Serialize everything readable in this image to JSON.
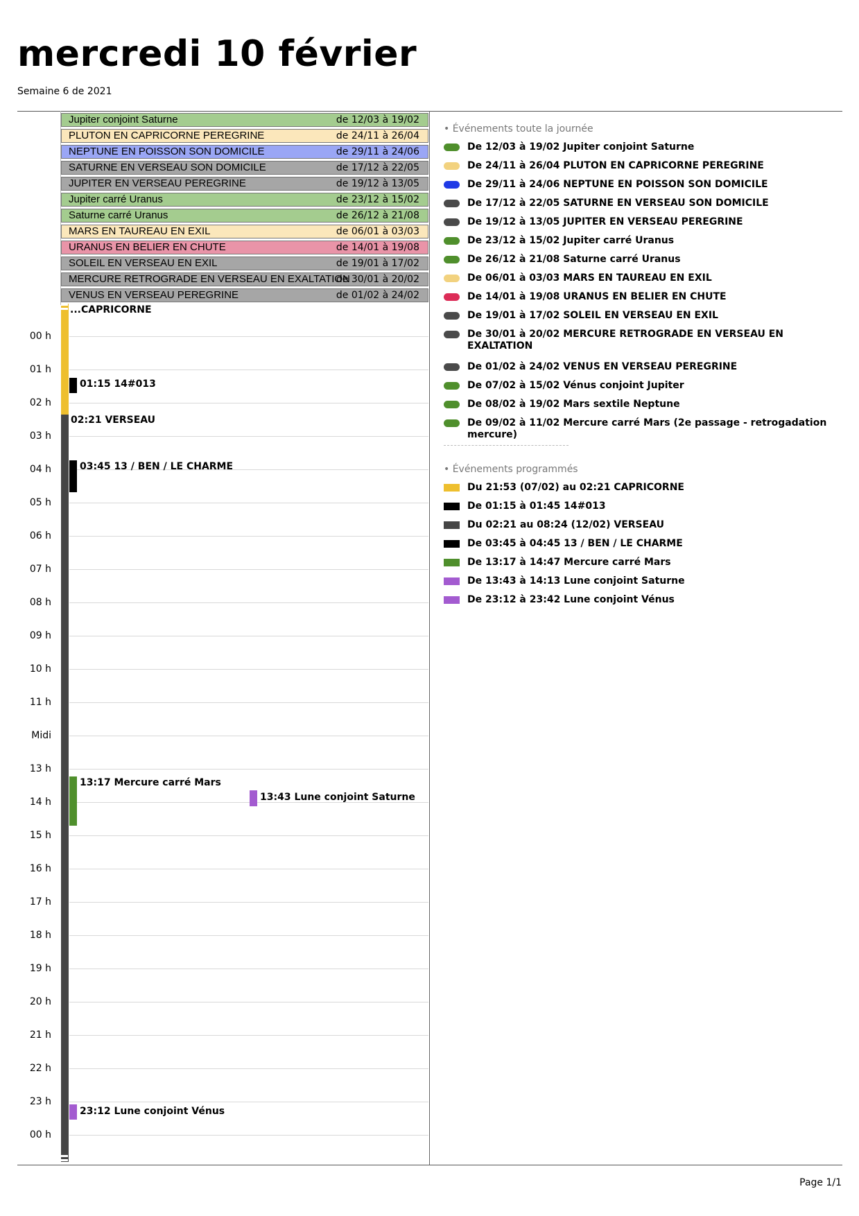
{
  "header": {
    "title": "mercredi 10 février",
    "subtitle": "Semaine 6 de 2021"
  },
  "all_day_bars": [
    {
      "name": "Jupiter conjoint Saturne",
      "dates": "de 12/03 à 19/02",
      "color": "#a4cc8f"
    },
    {
      "name": "PLUTON EN CAPRICORNE PEREGRINE",
      "dates": "de 24/11 à 26/04",
      "color": "#fbe7bb"
    },
    {
      "name": "NEPTUNE EN POISSON SON DOMICILE",
      "dates": "de 29/11 à 24/06",
      "color": "#9aa6f5"
    },
    {
      "name": "SATURNE EN VERSEAU SON DOMICILE",
      "dates": "de 17/12 à 22/05",
      "color": "#a6a6a6"
    },
    {
      "name": "JUPITER EN VERSEAU PEREGRINE",
      "dates": "de 19/12 à 13/05",
      "color": "#a6a6a6"
    },
    {
      "name": "Jupiter carré Uranus",
      "dates": "de 23/12 à 15/02",
      "color": "#a4cc8f"
    },
    {
      "name": "Saturne carré Uranus",
      "dates": "de 26/12 à 21/08",
      "color": "#a4cc8f"
    },
    {
      "name": "MARS EN TAUREAU EN EXIL",
      "dates": "de 06/01 à 03/03",
      "color": "#fbe7bb"
    },
    {
      "name": "URANUS EN BELIER EN CHUTE",
      "dates": "de 14/01 à 19/08",
      "color": "#e994a8"
    },
    {
      "name": "SOLEIL EN VERSEAU EN EXIL",
      "dates": "de 19/01 à 17/02",
      "color": "#a6a6a6"
    },
    {
      "name": "MERCURE RETROGRADE EN VERSEAU EN EXALTATION",
      "dates": "de 30/01 à 20/02",
      "color": "#a6a6a6"
    },
    {
      "name": "VENUS EN VERSEAU PEREGRINE",
      "dates": "de 01/02 à 24/02",
      "color": "#a6a6a6"
    }
  ],
  "hours": [
    "00 h",
    "01 h",
    "02 h",
    "03 h",
    "04 h",
    "05 h",
    "06 h",
    "07 h",
    "08 h",
    "09 h",
    "10 h",
    "11 h",
    "Midi",
    "13 h",
    "14 h",
    "15 h",
    "16 h",
    "17 h",
    "18 h",
    "19 h",
    "20 h",
    "21 h",
    "22 h",
    "23 h",
    "00 h"
  ],
  "timeline_labels": {
    "capricorne": "...CAPRICORNE",
    "ev_14013": "01:15 14#013",
    "verseau": "02:21 VERSEAU",
    "ben": "03:45 13 / BEN / LE CHARME",
    "mercure": "13:17 Mercure carré Mars",
    "lune_saturne": "13:43 Lune conjoint Saturne",
    "lune_venus": "23:12 Lune conjoint Vénus"
  },
  "legend": {
    "all_day_heading": "• Événements toute la journée",
    "all_day_items": [
      {
        "text": "De 12/03 à 19/02 Jupiter conjoint Saturne",
        "color": "#4f8f2c"
      },
      {
        "text": "De 24/11 à 26/04 PLUTON EN CAPRICORNE PEREGRINE",
        "color": "#f2d27f"
      },
      {
        "text": "De 29/11 à 24/06 NEPTUNE EN POISSON SON DOMICILE",
        "color": "#1f3ae6"
      },
      {
        "text": "De 17/12 à 22/05 SATURNE EN VERSEAU SON DOMICILE",
        "color": "#4a4a4a"
      },
      {
        "text": "De 19/12 à 13/05 JUPITER EN VERSEAU PEREGRINE",
        "color": "#4a4a4a"
      },
      {
        "text": "De 23/12 à 15/02 Jupiter carré Uranus",
        "color": "#4f8f2c"
      },
      {
        "text": "De 26/12 à 21/08 Saturne carré Uranus",
        "color": "#4f8f2c"
      },
      {
        "text": "De 06/01 à 03/03 MARS EN TAUREAU EN EXIL",
        "color": "#f2d27f"
      },
      {
        "text": "De 14/01 à 19/08 URANUS EN BELIER EN CHUTE",
        "color": "#dc2c57"
      },
      {
        "text": "De 19/01 à 17/02 SOLEIL EN VERSEAU EN EXIL",
        "color": "#4a4a4a"
      },
      {
        "text": "De 30/01 à 20/02 MERCURE RETROGRADE EN VERSEAU EN EXALTATION",
        "color": "#4a4a4a"
      },
      {
        "text": "De 01/02 à 24/02 VENUS EN VERSEAU PEREGRINE",
        "color": "#4a4a4a"
      },
      {
        "text": "De 07/02 à 15/02 Vénus conjoint Jupiter",
        "color": "#4f8f2c"
      },
      {
        "text": "De 08/02 à 19/02 Mars sextile Neptune",
        "color": "#4f8f2c"
      },
      {
        "text": "De 09/02 à 11/02 Mercure carré Mars (2e passage - retrogadation mercure)",
        "color": "#4f8f2c"
      }
    ],
    "scheduled_heading": "• Événements programmés",
    "scheduled_items": [
      {
        "text": "Du 21:53 (07/02) au 02:21 CAPRICORNE",
        "color": "#eebf2e"
      },
      {
        "text": "De 01:15 à 01:45 14#013",
        "color": "#000000"
      },
      {
        "text": "Du 02:21 au 08:24 (12/02) VERSEAU",
        "color": "#454545"
      },
      {
        "text": "De 03:45 à 04:45 13 / BEN / LE CHARME",
        "color": "#000000"
      },
      {
        "text": "De 13:17 à 14:47 Mercure carré Mars",
        "color": "#4f8f2c"
      },
      {
        "text": "De 13:43 à 14:13 Lune conjoint Saturne",
        "color": "#a35bd0"
      },
      {
        "text": "De 23:12 à 23:42 Lune conjoint Vénus",
        "color": "#a35bd0"
      }
    ]
  },
  "footer": {
    "page": "Page 1/1"
  }
}
